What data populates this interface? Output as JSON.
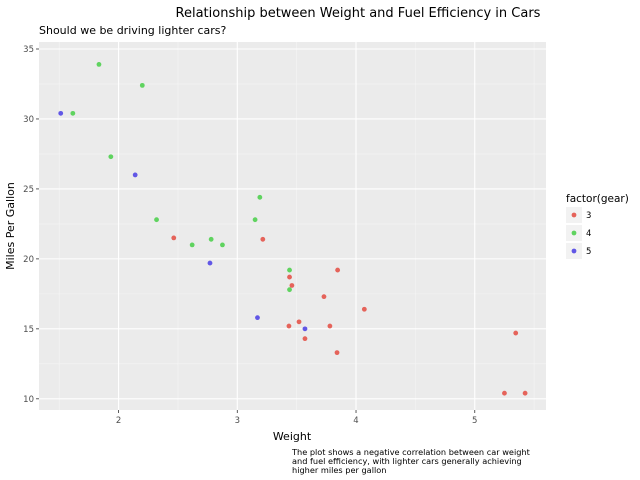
{
  "chart_data": {
    "type": "scatter",
    "title": "Relationship between Weight and Fuel Efficiency in Cars",
    "subtitle": "Should we be driving lighter cars?",
    "xlabel": "Weight",
    "ylabel": "Miles Per Gallon",
    "caption_lines": [
      "The plot shows a negative correlation between car weight",
      "and fuel efficiency, with lighter cars generally achieving",
      "higher miles per gallon"
    ],
    "xlim": [
      1.33,
      5.6
    ],
    "ylim": [
      9.2,
      35.5
    ],
    "x_ticks": [
      2,
      3,
      4,
      5
    ],
    "y_ticks": [
      10,
      15,
      20,
      25,
      30,
      35
    ],
    "grid": true,
    "legend": {
      "title": "factor(gear)",
      "position": "right"
    },
    "series": [
      {
        "name": "3",
        "color": "#E5635A",
        "points": [
          [
            2.465,
            21.5
          ],
          [
            3.215,
            21.4
          ],
          [
            3.44,
            18.7
          ],
          [
            3.46,
            18.1
          ],
          [
            3.57,
            14.3
          ],
          [
            4.07,
            16.4
          ],
          [
            3.73,
            17.3
          ],
          [
            3.78,
            15.2
          ],
          [
            5.25,
            10.4
          ],
          [
            5.424,
            10.4
          ],
          [
            5.345,
            14.7
          ],
          [
            3.52,
            15.5
          ],
          [
            3.435,
            15.2
          ],
          [
            3.84,
            13.3
          ],
          [
            3.845,
            19.2
          ]
        ]
      },
      {
        "name": "4",
        "color": "#5FD35F",
        "points": [
          [
            2.62,
            21.0
          ],
          [
            2.875,
            21.0
          ],
          [
            2.32,
            22.8
          ],
          [
            3.19,
            24.4
          ],
          [
            3.15,
            22.8
          ],
          [
            3.44,
            19.2
          ],
          [
            3.44,
            17.8
          ],
          [
            2.2,
            32.4
          ],
          [
            1.615,
            30.4
          ],
          [
            1.835,
            33.9
          ],
          [
            1.935,
            27.3
          ],
          [
            2.78,
            21.4
          ]
        ]
      },
      {
        "name": "5",
        "color": "#6157E6",
        "points": [
          [
            2.14,
            26.0
          ],
          [
            1.513,
            30.4
          ],
          [
            3.17,
            15.8
          ],
          [
            2.77,
            19.7
          ],
          [
            3.57,
            15.0
          ]
        ]
      }
    ]
  }
}
